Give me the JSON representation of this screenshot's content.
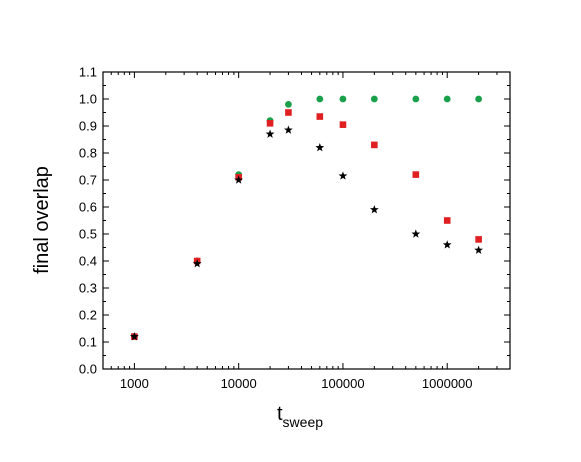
{
  "chart_data": {
    "type": "scatter",
    "title": "",
    "xlabel_main": "t",
    "xlabel_sub": "sweep",
    "ylabel": "final overlap",
    "xscale": "log",
    "xlim": [
      500,
      4000000
    ],
    "ylim": [
      0.0,
      1.1
    ],
    "grid": false,
    "legend": "none",
    "x_tick_labels": [
      "1000",
      "10000",
      "100000",
      "1000000"
    ],
    "x_tick_values": [
      1000,
      10000,
      100000,
      1000000
    ],
    "y_tick_labels": [
      "0.0",
      "0.1",
      "0.2",
      "0.3",
      "0.4",
      "0.5",
      "0.6",
      "0.7",
      "0.8",
      "0.9",
      "1.0",
      "1.1"
    ],
    "y_tick_values": [
      0.0,
      0.1,
      0.2,
      0.3,
      0.4,
      0.5,
      0.6,
      0.7,
      0.8,
      0.9,
      1.0,
      1.1
    ],
    "series": [
      {
        "marker": "circle",
        "color": "#1aa04a",
        "x": [
          1000,
          4000,
          10000,
          20000,
          30000,
          60000,
          100000,
          200000,
          500000,
          1000000,
          2000000
        ],
        "y": [
          0.12,
          0.4,
          0.72,
          0.92,
          0.98,
          1.0,
          1.0,
          1.0,
          1.0,
          1.0,
          1.0
        ]
      },
      {
        "marker": "square",
        "color": "#e02020",
        "x": [
          1000,
          4000,
          10000,
          20000,
          30000,
          60000,
          100000,
          200000,
          500000,
          1000000,
          2000000
        ],
        "y": [
          0.12,
          0.4,
          0.71,
          0.91,
          0.95,
          0.935,
          0.905,
          0.83,
          0.72,
          0.55,
          0.48
        ]
      },
      {
        "marker": "star",
        "color": "#000000",
        "x": [
          1000,
          4000,
          10000,
          20000,
          30000,
          60000,
          100000,
          200000,
          500000,
          1000000,
          2000000
        ],
        "y": [
          0.12,
          0.39,
          0.7,
          0.87,
          0.885,
          0.82,
          0.715,
          0.59,
          0.5,
          0.46,
          0.44
        ]
      }
    ]
  }
}
